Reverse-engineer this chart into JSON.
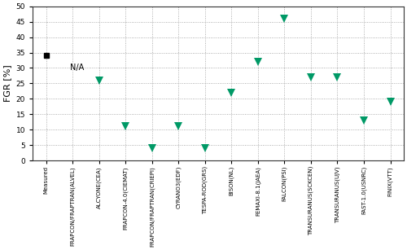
{
  "categories": [
    "Measured",
    "FRAPCON/FRAPTRAN(ALVEL)",
    "ALCYONE(CEA)",
    "FRAPCON-4.0(CIEMAT)",
    "FRAPCON/FRAPTRAN(CRIEPI)",
    "CYRANO3(EDF)",
    "TESPA-ROD(GRS)",
    "BISON(NL)",
    "FEMAXI-8.1(JAEA)",
    "FALCON(PSI)",
    "TRANSURANUS(SCKCEN)",
    "TRANSURANUS(UJV)",
    "FAST-1.0(USNRC)",
    "FINIX(VTT)"
  ],
  "values": [
    34,
    null,
    26,
    11,
    4,
    11,
    4,
    22,
    32,
    46,
    27,
    27,
    13,
    19
  ],
  "measured_value": 34,
  "ylabel": "FGR [%]",
  "ylim": [
    0,
    50
  ],
  "yticks": [
    0,
    5,
    10,
    15,
    20,
    25,
    30,
    35,
    40,
    45,
    50
  ],
  "marker_color": "#009966",
  "measured_color": "#000000",
  "na_label": "N/A",
  "na_index": 1,
  "background_color": "#ffffff",
  "grid_color": "#999999"
}
